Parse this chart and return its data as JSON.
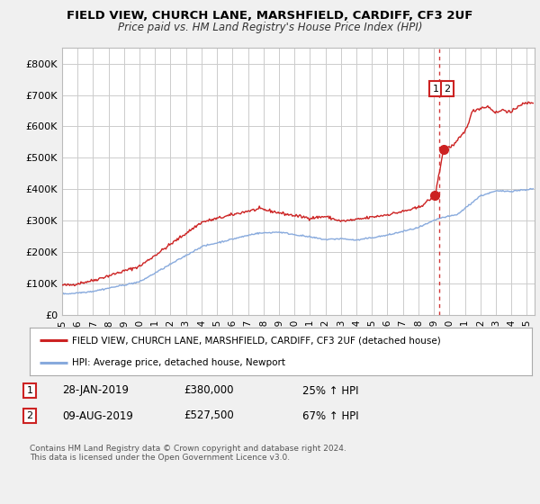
{
  "title": "FIELD VIEW, CHURCH LANE, MARSHFIELD, CARDIFF, CF3 2UF",
  "subtitle": "Price paid vs. HM Land Registry's House Price Index (HPI)",
  "ylim": [
    0,
    850000
  ],
  "yticks": [
    0,
    100000,
    200000,
    300000,
    400000,
    500000,
    600000,
    700000,
    800000
  ],
  "ytick_labels": [
    "£0",
    "£100K",
    "£200K",
    "£300K",
    "£400K",
    "£500K",
    "£600K",
    "£700K",
    "£800K"
  ],
  "background_color": "#f0f0f0",
  "plot_bg": "#ffffff",
  "red_line_color": "#cc2222",
  "blue_line_color": "#88aadd",
  "dashed_line_color": "#cc2222",
  "legend_label_red": "FIELD VIEW, CHURCH LANE, MARSHFIELD, CARDIFF, CF3 2UF (detached house)",
  "legend_label_blue": "HPI: Average price, detached house, Newport",
  "annotation1_num": "1",
  "annotation1_date": "28-JAN-2019",
  "annotation1_price": "£380,000",
  "annotation1_pct": "25% ↑ HPI",
  "annotation2_num": "2",
  "annotation2_date": "09-AUG-2019",
  "annotation2_price": "£527,500",
  "annotation2_pct": "67% ↑ HPI",
  "footnote": "Contains HM Land Registry data © Crown copyright and database right 2024.\nThis data is licensed under the Open Government Licence v3.0.",
  "sale1_x": 2019.08,
  "sale1_y": 380000,
  "sale2_x": 2019.62,
  "sale2_y": 527500,
  "dashed_x": 2019.35,
  "xmin": 1995,
  "xmax": 2025.5,
  "xticks": [
    1995,
    1996,
    1997,
    1998,
    1999,
    2000,
    2001,
    2002,
    2003,
    2004,
    2005,
    2006,
    2007,
    2008,
    2009,
    2010,
    2011,
    2012,
    2013,
    2014,
    2015,
    2016,
    2017,
    2018,
    2019,
    2020,
    2021,
    2022,
    2023,
    2024,
    2025
  ]
}
